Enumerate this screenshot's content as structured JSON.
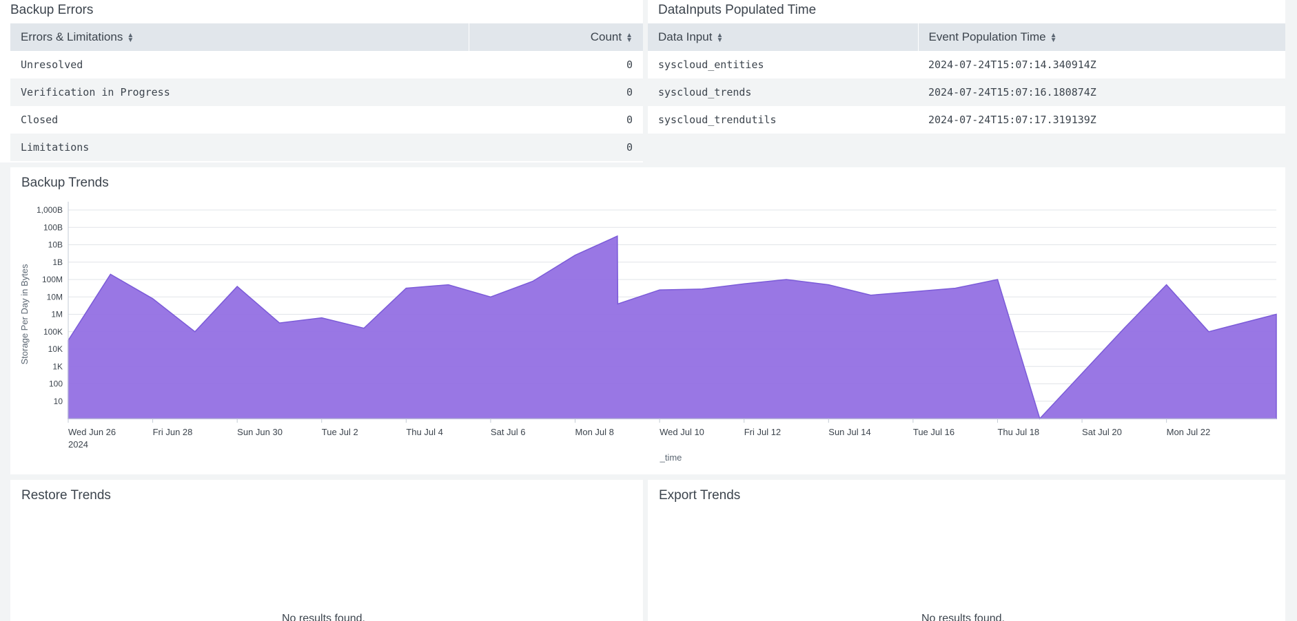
{
  "backup_errors": {
    "title": "Backup Errors",
    "columns": [
      "Errors & Limitations",
      "Count"
    ],
    "rows": [
      {
        "label": "Unresolved",
        "count": "0"
      },
      {
        "label": "Verification in Progress",
        "count": "0"
      },
      {
        "label": "Closed",
        "count": "0"
      },
      {
        "label": "Limitations",
        "count": "0"
      }
    ]
  },
  "datainputs": {
    "title": "DataInputs Populated Time",
    "columns": [
      "Data Input",
      "Event Population Time"
    ],
    "rows": [
      {
        "input": "syscloud_entities",
        "time": "2024-07-24T15:07:14.340914Z"
      },
      {
        "input": "syscloud_trends",
        "time": "2024-07-24T15:07:16.180874Z"
      },
      {
        "input": "syscloud_trendutils",
        "time": "2024-07-24T15:07:17.319139Z"
      }
    ]
  },
  "backup_trends": {
    "title": "Backup Trends",
    "color": "#9370e3",
    "stroke": "#7b5bd8"
  },
  "restore_trends": {
    "title": "Restore Trends",
    "empty_text": "No results found."
  },
  "export_trends": {
    "title": "Export Trends",
    "empty_text": "No results found."
  },
  "chart_data": {
    "type": "area",
    "title": "Backup Trends",
    "xlabel": "_time",
    "ylabel": "Storage Per Day in Bytes",
    "yscale": "log",
    "ylim_log10": [
      0,
      12
    ],
    "y_ticks": [
      {
        "label": "10",
        "log": 1
      },
      {
        "label": "100",
        "log": 2
      },
      {
        "label": "1K",
        "log": 3
      },
      {
        "label": "10K",
        "log": 4
      },
      {
        "label": "100K",
        "log": 5
      },
      {
        "label": "1M",
        "log": 6
      },
      {
        "label": "10M",
        "log": 7
      },
      {
        "label": "100M",
        "log": 8
      },
      {
        "label": "1B",
        "log": 9
      },
      {
        "label": "10B",
        "log": 10
      },
      {
        "label": "100B",
        "log": 11
      },
      {
        "label": "1,000B",
        "log": 12
      }
    ],
    "x_range_days": [
      0,
      28.6
    ],
    "x_ticks": [
      {
        "day": 0,
        "label": "Wed Jun 26",
        "sublabel": "2024"
      },
      {
        "day": 2,
        "label": "Fri Jun 28"
      },
      {
        "day": 4,
        "label": "Sun Jun 30"
      },
      {
        "day": 6,
        "label": "Tue Jul 2"
      },
      {
        "day": 8,
        "label": "Thu Jul 4"
      },
      {
        "day": 10,
        "label": "Sat Jul 6"
      },
      {
        "day": 12,
        "label": "Mon Jul 8"
      },
      {
        "day": 14,
        "label": "Wed Jul 10"
      },
      {
        "day": 16,
        "label": "Fri Jul 12"
      },
      {
        "day": 18,
        "label": "Sun Jul 14"
      },
      {
        "day": 20,
        "label": "Tue Jul 16"
      },
      {
        "day": 22,
        "label": "Thu Jul 18"
      },
      {
        "day": 24,
        "label": "Sat Jul 20"
      },
      {
        "day": 26,
        "label": "Mon Jul 22"
      }
    ],
    "series": [
      {
        "name": "Storage Per Day in Bytes",
        "points": [
          {
            "day": 0,
            "log": 4.5
          },
          {
            "day": 1,
            "log": 8.3
          },
          {
            "day": 2,
            "log": 6.9
          },
          {
            "day": 3,
            "log": 5.0
          },
          {
            "day": 4,
            "log": 7.6
          },
          {
            "day": 5,
            "log": 5.5
          },
          {
            "day": 6,
            "log": 5.8
          },
          {
            "day": 7,
            "log": 5.2
          },
          {
            "day": 8,
            "log": 7.5
          },
          {
            "day": 9,
            "log": 7.7
          },
          {
            "day": 10,
            "log": 7.0
          },
          {
            "day": 11,
            "log": 7.9
          },
          {
            "day": 12,
            "log": 9.4
          },
          {
            "day": 13,
            "log": 10.5
          },
          {
            "day": 13.01,
            "log": 6.6
          },
          {
            "day": 14,
            "log": 7.4
          },
          {
            "day": 15,
            "log": 7.45
          },
          {
            "day": 16,
            "log": 7.75
          },
          {
            "day": 17,
            "log": 8.0
          },
          {
            "day": 18,
            "log": 7.7
          },
          {
            "day": 19,
            "log": 7.1
          },
          {
            "day": 20,
            "log": 7.3
          },
          {
            "day": 21,
            "log": 7.5
          },
          {
            "day": 22,
            "log": 8.0
          },
          {
            "day": 23,
            "log": 0.0
          },
          {
            "day": 24,
            "log": 2.6
          },
          {
            "day": 25,
            "log": 5.2
          },
          {
            "day": 26,
            "log": 7.7
          },
          {
            "day": 27,
            "log": 5.0
          },
          {
            "day": 28.6,
            "log": 6.0
          }
        ]
      }
    ]
  }
}
